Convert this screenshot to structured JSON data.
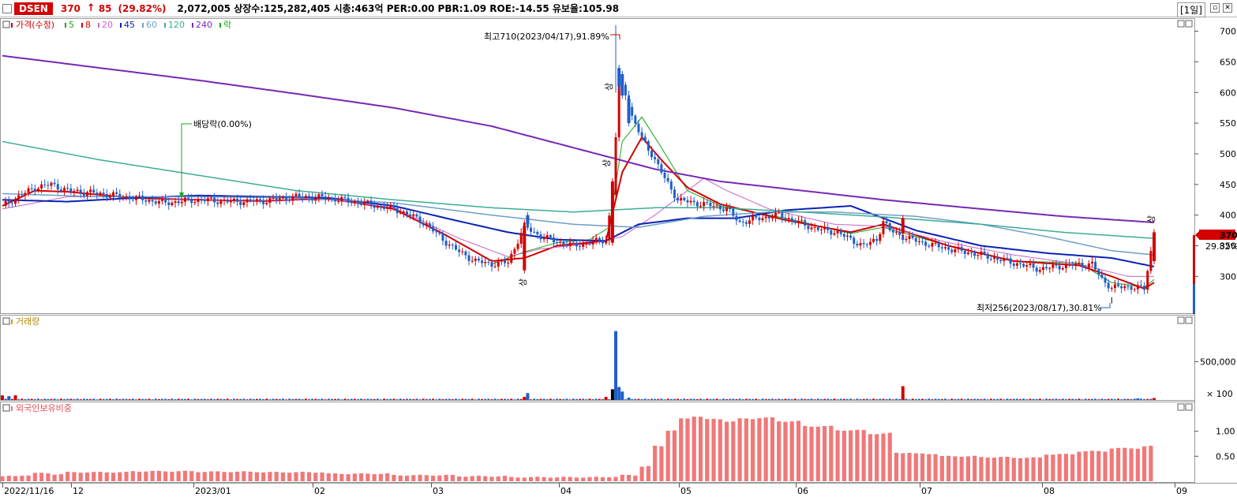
{
  "header": {
    "code": "DSEN",
    "price": "370",
    "arrow": "↑",
    "change": "85",
    "change_pct": "(29.82%)",
    "info": "2,072,005  상장수:125,282,405 시총:463억 PER:0.00 PBR:1.09 ROE:-14.55 유보율:105.98",
    "period": "[1일]",
    "colors": {
      "up": "#d30000",
      "down": "#1f5fc9"
    }
  },
  "legend": {
    "price_label": "가격(수정)",
    "items": [
      {
        "label": "5",
        "color": "#1aa81a"
      },
      {
        "label": "8",
        "color": "#d30000"
      },
      {
        "label": "20",
        "color": "#c864c8"
      },
      {
        "label": "45",
        "color": "#0a22b4"
      },
      {
        "label": "60",
        "color": "#6e9ec8"
      },
      {
        "label": "120",
        "color": "#3cac96"
      },
      {
        "label": "240",
        "color": "#7828b4"
      },
      {
        "label": "락",
        "color": "#1aa81a"
      }
    ],
    "volume_label": "거래량",
    "foreign_label": "외국인보유비중"
  },
  "annotations": {
    "high": "최고710(2023/04/17),91.89%",
    "low": "최저256(2023/08/17),30.81%",
    "dividend": "배당락(0.00%)",
    "upper_limit": "상",
    "last_price": "370",
    "last_pct": "29.82%"
  },
  "chart_data": [
    {
      "type": "candlestick",
      "name": "price",
      "yticks": [
        300,
        350,
        400,
        450,
        500,
        550,
        600,
        650,
        700
      ],
      "ylim": [
        240,
        720
      ],
      "xlabels": [
        "2022/11/16",
        "12",
        "2023/01",
        "02",
        "03",
        "04",
        "05",
        "06",
        "07",
        "08",
        "09"
      ],
      "close_path": [
        [
          0,
          415
        ],
        [
          5,
          430
        ],
        [
          10,
          445
        ],
        [
          15,
          450
        ],
        [
          20,
          440
        ],
        [
          30,
          435
        ],
        [
          40,
          428
        ],
        [
          50,
          420
        ],
        [
          60,
          425
        ],
        [
          70,
          422
        ],
        [
          80,
          423
        ],
        [
          90,
          430
        ],
        [
          100,
          428
        ],
        [
          110,
          420
        ],
        [
          120,
          410
        ],
        [
          125,
          400
        ],
        [
          130,
          385
        ],
        [
          135,
          360
        ],
        [
          140,
          340
        ],
        [
          145,
          325
        ],
        [
          150,
          320
        ],
        [
          155,
          323
        ],
        [
          160,
          382
        ],
        [
          165,
          365
        ],
        [
          170,
          357
        ],
        [
          175,
          350
        ],
        [
          180,
          355
        ],
        [
          185,
          360
        ],
        [
          187,
          435
        ],
        [
          189,
          620
        ],
        [
          191,
          600
        ],
        [
          193,
          560
        ],
        [
          196,
          525
        ],
        [
          199,
          500
        ],
        [
          203,
          460
        ],
        [
          207,
          425
        ],
        [
          212,
          420
        ],
        [
          218,
          415
        ],
        [
          222,
          410
        ],
        [
          226,
          388
        ],
        [
          232,
          395
        ],
        [
          238,
          400
        ],
        [
          243,
          390
        ],
        [
          248,
          380
        ],
        [
          252,
          375
        ],
        [
          256,
          372
        ],
        [
          260,
          360
        ],
        [
          264,
          350
        ],
        [
          268,
          360
        ],
        [
          270,
          390
        ],
        [
          272,
          375
        ],
        [
          276,
          365
        ],
        [
          282,
          355
        ],
        [
          290,
          345
        ],
        [
          300,
          335
        ],
        [
          310,
          322
        ],
        [
          318,
          312
        ],
        [
          326,
          318
        ],
        [
          334,
          320
        ],
        [
          337,
          295
        ],
        [
          340,
          282
        ],
        [
          346,
          283
        ],
        [
          350,
          280
        ],
        [
          353,
          370
        ]
      ],
      "ma": {
        "5": [
          [
            150,
            320
          ],
          [
            160,
            340
          ],
          [
            170,
            355
          ],
          [
            180,
            360
          ],
          [
            186,
            380
          ],
          [
            190,
            520
          ],
          [
            196,
            560
          ],
          [
            202,
            510
          ],
          [
            210,
            440
          ],
          [
            220,
            415
          ],
          [
            240,
            395
          ],
          [
            260,
            370
          ],
          [
            270,
            380
          ],
          [
            290,
            350
          ],
          [
            310,
            325
          ],
          [
            330,
            322
          ],
          [
            340,
            290
          ],
          [
            350,
            282
          ],
          [
            353,
            295
          ]
        ],
        "8": [
          [
            0,
            415
          ],
          [
            10,
            440
          ],
          [
            20,
            438
          ],
          [
            40,
            428
          ],
          [
            60,
            425
          ],
          [
            80,
            423
          ],
          [
            100,
            427
          ],
          [
            120,
            410
          ],
          [
            135,
            370
          ],
          [
            150,
            325
          ],
          [
            160,
            330
          ],
          [
            170,
            350
          ],
          [
            185,
            358
          ],
          [
            190,
            470
          ],
          [
            196,
            527
          ],
          [
            202,
            490
          ],
          [
            210,
            445
          ],
          [
            220,
            418
          ],
          [
            240,
            392
          ],
          [
            260,
            372
          ],
          [
            270,
            385
          ],
          [
            290,
            350
          ],
          [
            310,
            325
          ],
          [
            330,
            318
          ],
          [
            340,
            300
          ],
          [
            350,
            280
          ],
          [
            353,
            290
          ]
        ],
        "20": [
          [
            0,
            410
          ],
          [
            20,
            430
          ],
          [
            40,
            430
          ],
          [
            60,
            425
          ],
          [
            80,
            424
          ],
          [
            100,
            425
          ],
          [
            120,
            412
          ],
          [
            140,
            362
          ],
          [
            155,
            332
          ],
          [
            165,
            345
          ],
          [
            180,
            353
          ],
          [
            190,
            365
          ],
          [
            200,
            400
          ],
          [
            210,
            440
          ],
          [
            215,
            460
          ],
          [
            222,
            440
          ],
          [
            235,
            410
          ],
          [
            255,
            385
          ],
          [
            270,
            382
          ],
          [
            290,
            355
          ],
          [
            310,
            335
          ],
          [
            330,
            320
          ],
          [
            345,
            300
          ],
          [
            353,
            300
          ]
        ],
        "45": [
          [
            0,
            425
          ],
          [
            20,
            422
          ],
          [
            40,
            428
          ],
          [
            60,
            432
          ],
          [
            80,
            430
          ],
          [
            100,
            428
          ],
          [
            120,
            415
          ],
          [
            140,
            390
          ],
          [
            155,
            372
          ],
          [
            170,
            360
          ],
          [
            185,
            358
          ],
          [
            195,
            385
          ],
          [
            210,
            395
          ],
          [
            225,
            395
          ],
          [
            240,
            408
          ],
          [
            260,
            415
          ],
          [
            265,
            405
          ],
          [
            280,
            375
          ],
          [
            300,
            350
          ],
          [
            320,
            338
          ],
          [
            340,
            330
          ],
          [
            353,
            316
          ]
        ],
        "60": [
          [
            0,
            435
          ],
          [
            30,
            430
          ],
          [
            60,
            430
          ],
          [
            90,
            428
          ],
          [
            120,
            420
          ],
          [
            150,
            400
          ],
          [
            175,
            385
          ],
          [
            195,
            380
          ],
          [
            215,
            398
          ],
          [
            235,
            405
          ],
          [
            255,
            405
          ],
          [
            280,
            398
          ],
          [
            300,
            385
          ],
          [
            320,
            365
          ],
          [
            340,
            342
          ],
          [
            353,
            335
          ]
        ],
        "120": [
          [
            0,
            520
          ],
          [
            30,
            490
          ],
          [
            60,
            465
          ],
          [
            90,
            440
          ],
          [
            120,
            425
          ],
          [
            150,
            412
          ],
          [
            175,
            405
          ],
          [
            200,
            412
          ],
          [
            220,
            412
          ],
          [
            245,
            405
          ],
          [
            270,
            397
          ],
          [
            300,
            385
          ],
          [
            325,
            372
          ],
          [
            353,
            362
          ]
        ],
        "240": [
          [
            0,
            660
          ],
          [
            30,
            640
          ],
          [
            60,
            620
          ],
          [
            90,
            598
          ],
          [
            120,
            575
          ],
          [
            150,
            545
          ],
          [
            175,
            510
          ],
          [
            200,
            475
          ],
          [
            220,
            455
          ],
          [
            245,
            440
          ],
          [
            270,
            425
          ],
          [
            300,
            410
          ],
          [
            325,
            398
          ],
          [
            353,
            388
          ]
        ]
      },
      "last_price": 370,
      "high": 710,
      "low": 256
    },
    {
      "type": "bar",
      "name": "volume",
      "yticks": [
        "500,000"
      ],
      "unit_label": "× 100",
      "ylim": [
        0,
        1000000
      ],
      "spikes": [
        {
          "x": 0,
          "value": 60000,
          "color": "#d30000"
        },
        {
          "x": 2,
          "value": 50000,
          "color": "#1f5fc9"
        },
        {
          "x": 4,
          "value": 60000,
          "color": "#d30000"
        },
        {
          "x": 160,
          "value": 40000,
          "color": "#d30000"
        },
        {
          "x": 161,
          "value": 90000,
          "color": "#1f5fc9"
        },
        {
          "x": 185,
          "value": 40000,
          "color": "#d30000"
        },
        {
          "x": 187,
          "value": 140000,
          "color": "#000000"
        },
        {
          "x": 188,
          "value": 900000,
          "color": "#1f5fc9"
        },
        {
          "x": 189,
          "value": 170000,
          "color": "#1f5fc9"
        },
        {
          "x": 190,
          "value": 110000,
          "color": "#1f5fc9"
        },
        {
          "x": 192,
          "value": 30000,
          "color": "#1f5fc9"
        },
        {
          "x": 276,
          "value": 180000,
          "color": "#d30000"
        },
        {
          "x": 348,
          "value": 20000,
          "color": "#1f5fc9"
        },
        {
          "x": 353,
          "value": 25000,
          "color": "#d30000"
        }
      ],
      "base_value": 12000
    },
    {
      "type": "bar",
      "name": "foreign_holding",
      "yticks": [
        "1.00",
        "0.50"
      ],
      "ylim": [
        0,
        1.5
      ],
      "color": "#f07878",
      "values_by_segment": [
        [
          0,
          0.1
        ],
        [
          5,
          0.12
        ],
        [
          10,
          0.16
        ],
        [
          15,
          0.14
        ],
        [
          20,
          0.18
        ],
        [
          40,
          0.2
        ],
        [
          60,
          0.19
        ],
        [
          80,
          0.18
        ],
        [
          100,
          0.15
        ],
        [
          120,
          0.12
        ],
        [
          140,
          0.1
        ],
        [
          155,
          0.08
        ],
        [
          170,
          0.08
        ],
        [
          185,
          0.09
        ],
        [
          190,
          0.12
        ],
        [
          195,
          0.3
        ],
        [
          199,
          0.7
        ],
        [
          203,
          1.02
        ],
        [
          207,
          1.25
        ],
        [
          211,
          1.3
        ],
        [
          216,
          1.24
        ],
        [
          221,
          1.2
        ],
        [
          226,
          1.25
        ],
        [
          232,
          1.27
        ],
        [
          237,
          1.2
        ],
        [
          245,
          1.1
        ],
        [
          255,
          1.02
        ],
        [
          265,
          0.95
        ],
        [
          271,
          0.96
        ],
        [
          274,
          0.57
        ],
        [
          280,
          0.55
        ],
        [
          288,
          0.5
        ],
        [
          300,
          0.48
        ],
        [
          310,
          0.47
        ],
        [
          320,
          0.54
        ],
        [
          330,
          0.6
        ],
        [
          340,
          0.66
        ],
        [
          350,
          0.7
        ],
        [
          353,
          0.7
        ]
      ]
    }
  ]
}
